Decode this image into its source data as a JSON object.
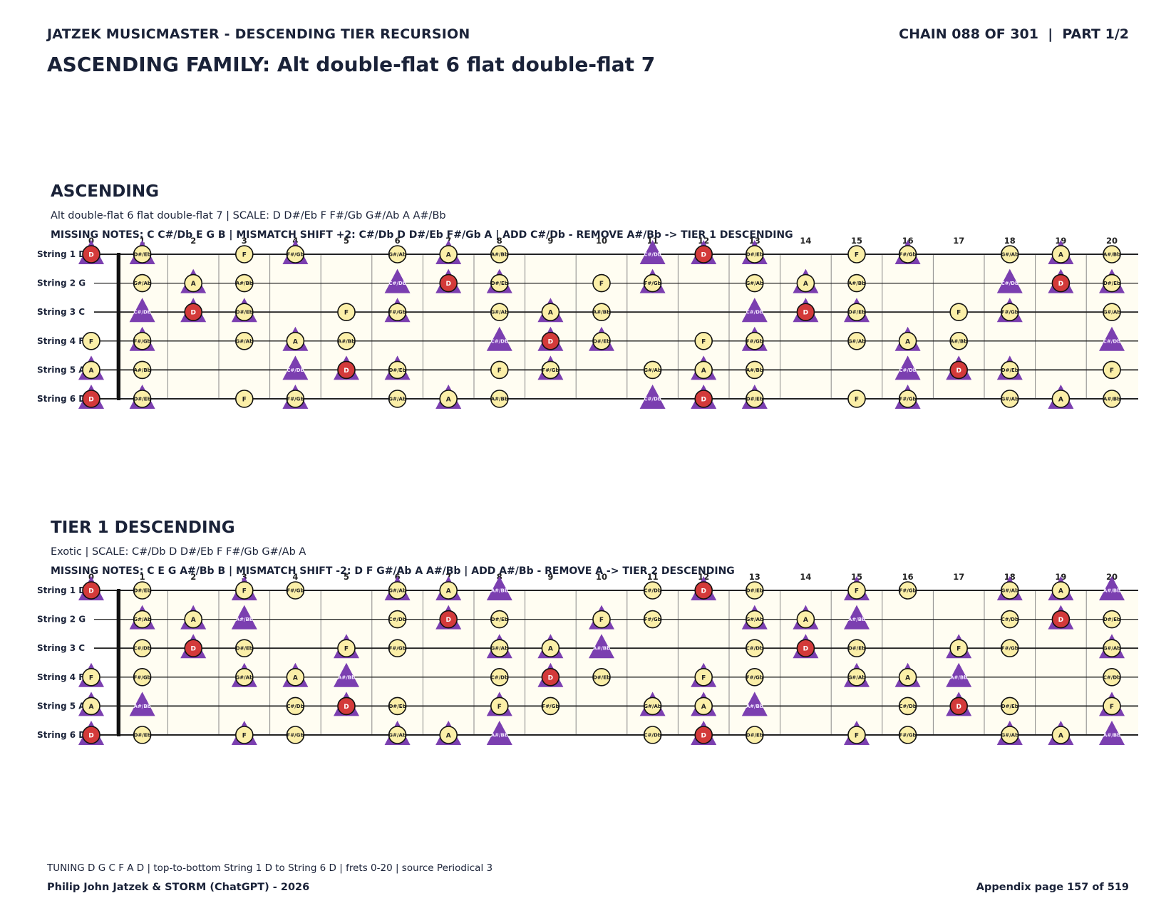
{
  "header": {
    "left": "JATZEK MUSICMASTER - DESCENDING TIER RECURSION",
    "right": "CHAIN 088 OF 301  |  PART 1/2",
    "title": "ASCENDING FAMILY: Alt double-flat 6 flat double-flat 7"
  },
  "fretboard": {
    "string_labels": [
      "String 1 D",
      "String 2 G",
      "String 3 C",
      "String 4 F",
      "String 5 A",
      "String 6 D"
    ],
    "open_notes": [
      2,
      7,
      0,
      5,
      9,
      2
    ],
    "fret_numbers": [
      "0",
      "1",
      "2",
      "3",
      "4",
      "5",
      "6",
      "7",
      "8",
      "9",
      "10",
      "11",
      "12",
      "13",
      "14",
      "15",
      "16",
      "17",
      "18",
      "19",
      "20"
    ],
    "note_names": [
      "C",
      "C#/Db",
      "D",
      "D#/Eb",
      "E",
      "F",
      "F#/Gb",
      "G",
      "G#/Ab",
      "A",
      "A#/Bb",
      "B"
    ],
    "colors": {
      "root": "#d33a3a",
      "note": "#fbefa8",
      "shift": "#7b3fb0",
      "board": "#fffdf2",
      "line": "#222222"
    }
  },
  "sections": [
    {
      "title": "ASCENDING",
      "subtitle": "Alt double-flat 6 flat double-flat 7  |  SCALE: D D#/Eb F F#/Gb G#/Ab A A#/Bb",
      "missing": "MISSING NOTES: C C#/Db E G B  |  MISMATCH SHIFT +2: C#/Db D D#/Eb F#/Gb A  |  ADD C#/Db - REMOVE A#/Bb -> TIER 1 DESCENDING",
      "root": "D",
      "scale": [
        "D",
        "D#/Eb",
        "F",
        "F#/Gb",
        "G#/Ab",
        "A",
        "A#/Bb"
      ],
      "triangles": [
        "C#/Db",
        "D",
        "D#/Eb",
        "F#/Gb",
        "A"
      ]
    },
    {
      "title": "TIER 1 DESCENDING",
      "subtitle": "Exotic  |  SCALE: C#/Db D D#/Eb F F#/Gb G#/Ab A",
      "missing": "MISSING NOTES: C E G A#/Bb B  |  MISMATCH SHIFT -2: D F G#/Ab A A#/Bb  |  ADD A#/Bb - REMOVE A -> TIER 2 DESCENDING",
      "root": "D",
      "scale": [
        "C#/Db",
        "D",
        "D#/Eb",
        "F",
        "F#/Gb",
        "G#/Ab",
        "A"
      ],
      "triangles": [
        "D",
        "F",
        "G#/Ab",
        "A",
        "A#/Bb"
      ]
    }
  ],
  "footer": {
    "line1": "TUNING D G C F A D | top-to-bottom String 1 D to String 6 D | frets 0-20 | source Periodical 3",
    "line2": "Philip John Jatzek & STORM (ChatGPT) - 2026",
    "page": "Appendix page 157 of 519"
  }
}
